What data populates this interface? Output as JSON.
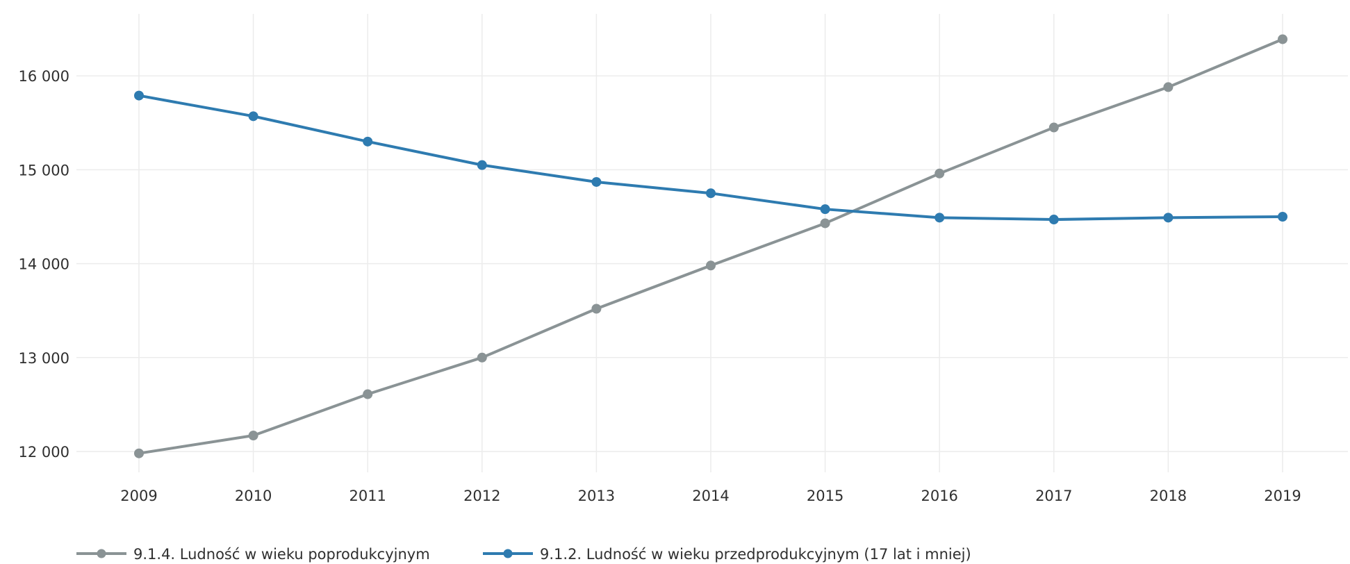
{
  "chart_data": {
    "type": "line",
    "title": "",
    "xlabel": "",
    "ylabel": "",
    "x": [
      "2009",
      "2010",
      "2011",
      "2012",
      "2013",
      "2014",
      "2015",
      "2016",
      "2017",
      "2018",
      "2019"
    ],
    "ylim": [
      11800,
      16400
    ],
    "yticks": [
      12000,
      13000,
      14000,
      15000,
      16000
    ],
    "ytick_labels": [
      "12 000",
      "13 000",
      "14 000",
      "15 000",
      "16 000"
    ],
    "grid": true,
    "legend_position": "bottom-left",
    "series": [
      {
        "name": "9.1.4. Ludność w wieku poprodukcyjnym",
        "color": "#8a9395",
        "values": [
          11980,
          12170,
          12610,
          13000,
          13520,
          13980,
          14430,
          14960,
          15450,
          15880,
          16390
        ]
      },
      {
        "name": "9.1.2. Ludność w wieku przedprodukcyjnym (17 lat i  mniej)",
        "color": "#2e7bb0",
        "values": [
          15790,
          15570,
          15300,
          15050,
          14870,
          14750,
          14580,
          14490,
          14470,
          14490,
          14500
        ]
      }
    ]
  }
}
